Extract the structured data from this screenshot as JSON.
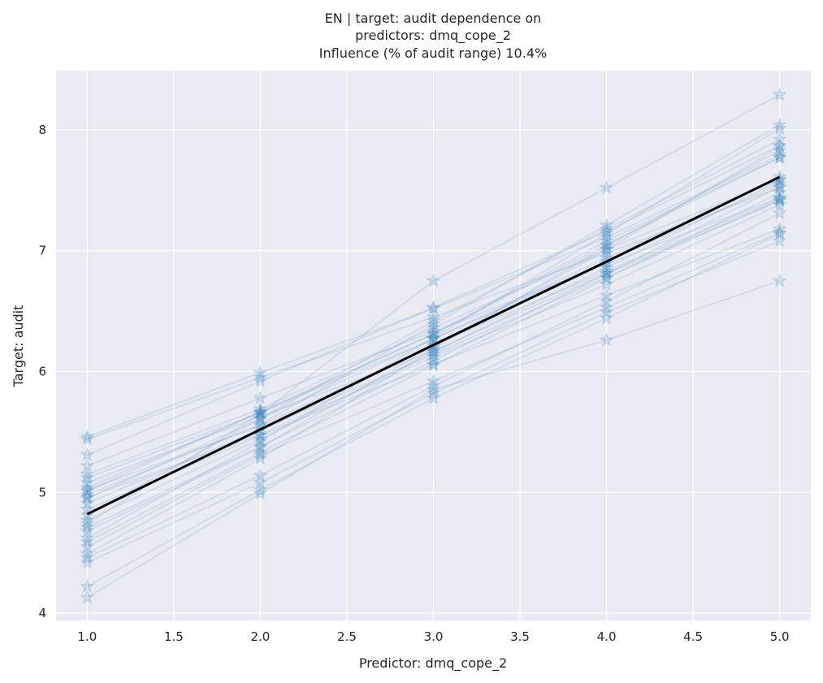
{
  "chart_data": {
    "type": "line",
    "title_lines": [
      "EN | target: audit dependence on",
      "predictors: dmq_cope_2",
      "Influence (% of audit range) 10.4%"
    ],
    "xlabel": "Predictor: dmq_cope_2",
    "ylabel": "Target: audit",
    "xlim": [
      0.82,
      5.18
    ],
    "ylim": [
      3.94,
      8.49
    ],
    "x_ticks": [
      1.0,
      1.5,
      2.0,
      2.5,
      3.0,
      3.5,
      4.0,
      4.5,
      5.0
    ],
    "x_tick_labels": [
      "1.0",
      "1.5",
      "2.0",
      "2.5",
      "3.0",
      "3.5",
      "4.0",
      "4.5",
      "5.0"
    ],
    "y_ticks": [
      4,
      5,
      6,
      7,
      8
    ],
    "y_tick_labels": [
      "4",
      "5",
      "6",
      "7",
      "8"
    ],
    "grid": true,
    "x": [
      1,
      2,
      3,
      4,
      5
    ],
    "mean_line": {
      "values": [
        4.82,
        5.52,
        6.22,
        6.91,
        7.61
      ],
      "color": "#000000"
    },
    "individual_lines_color": "#2b7bba",
    "individual_lines": [
      [
        5.46,
        5.99,
        6.52,
        7.11,
        7.79
      ],
      [
        5.44,
        5.95,
        6.45,
        6.98,
        7.52
      ],
      [
        5.31,
        5.92,
        6.53,
        7.16,
        7.87
      ],
      [
        5.22,
        5.78,
        6.33,
        6.89,
        7.44
      ],
      [
        5.15,
        5.69,
        6.36,
        7.01,
        7.59
      ],
      [
        5.12,
        5.66,
        6.31,
        7.05,
        7.77
      ],
      [
        5.08,
        5.63,
        6.17,
        6.81,
        7.41
      ],
      [
        5.04,
        5.66,
        6.27,
        6.91,
        7.55
      ],
      [
        5.02,
        5.55,
        6.22,
        6.83,
        7.43
      ],
      [
        5.01,
        5.67,
        6.31,
        7.08,
        7.77
      ],
      [
        4.98,
        5.56,
        6.39,
        7.21,
        8.04
      ],
      [
        4.96,
        5.48,
        6.12,
        6.72,
        7.38
      ],
      [
        4.95,
        5.61,
        6.27,
        6.94,
        7.61
      ],
      [
        4.91,
        5.52,
        6.14,
        6.78,
        7.42
      ],
      [
        4.86,
        5.47,
        6.06,
        6.63,
        7.18
      ],
      [
        4.81,
        5.61,
        6.42,
        7.18,
        7.92
      ],
      [
        4.77,
        5.44,
        6.16,
        6.86,
        7.58
      ],
      [
        4.74,
        5.65,
        6.75,
        7.52,
        8.29
      ],
      [
        4.71,
        5.38,
        6.09,
        6.81,
        7.53
      ],
      [
        4.68,
        5.37,
        6.21,
        7.01,
        7.86
      ],
      [
        4.62,
        5.42,
        6.28,
        7.14,
        8.01
      ],
      [
        4.59,
        5.33,
        6.05,
        6.77,
        7.48
      ],
      [
        4.55,
        5.31,
        5.92,
        6.53,
        7.15
      ],
      [
        4.49,
        5.28,
        6.19,
        7.04,
        7.83
      ],
      [
        4.46,
        5.14,
        5.88,
        6.58,
        7.31
      ],
      [
        4.42,
        5.08,
        5.82,
        6.49,
        7.08
      ],
      [
        4.22,
        5.02,
        5.78,
        6.44,
        7.14
      ],
      [
        4.13,
        4.99,
        5.85,
        6.26,
        6.75
      ]
    ]
  }
}
